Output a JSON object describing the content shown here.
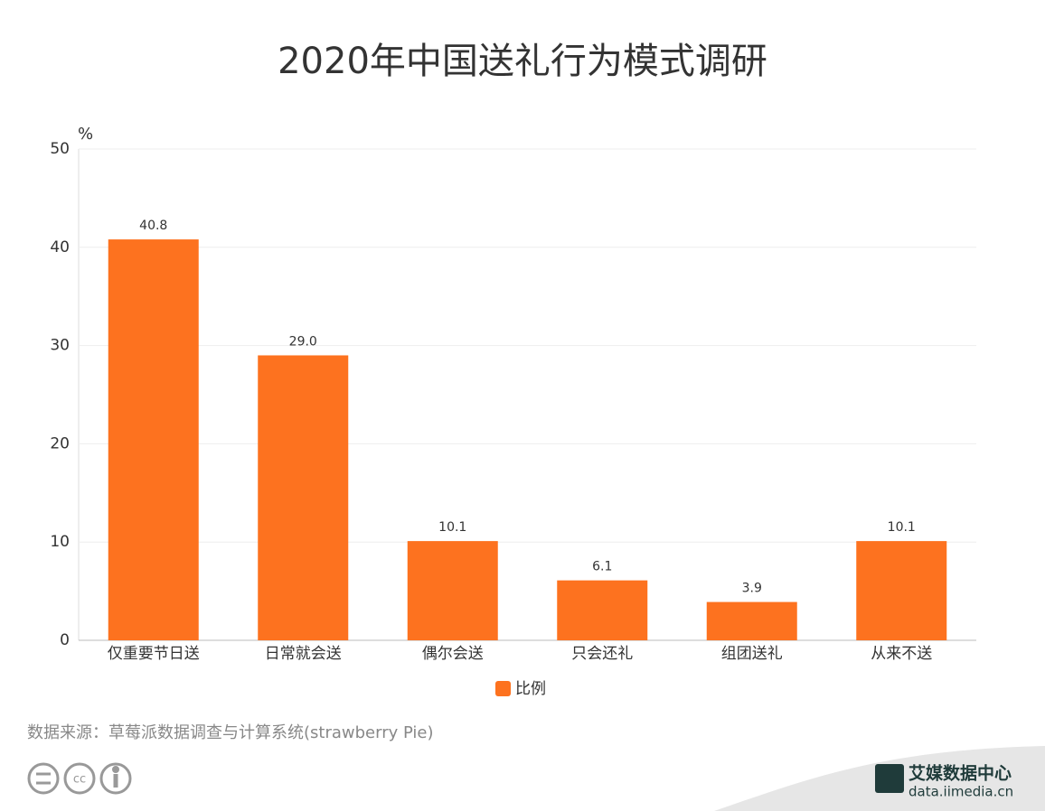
{
  "chart_data": {
    "type": "bar",
    "title": "2020年中国送礼行为模式调研",
    "y_unit": "%",
    "categories": [
      "仅重要节日送",
      "日常就会送",
      "偶尔会送",
      "只会还礼",
      "组团送礼",
      "从来不送"
    ],
    "series": [
      {
        "name": "比例",
        "color": "#fd721f",
        "values": [
          40.8,
          29.0,
          10.1,
          6.1,
          3.9,
          10.1
        ],
        "value_labels": [
          "40.8",
          "29.0",
          "10.1",
          "6.1",
          "3.9",
          "10.1"
        ]
      }
    ],
    "ylim": [
      0,
      50
    ],
    "yticks": [
      0,
      10,
      20,
      30,
      40,
      50
    ],
    "grid": true,
    "source": "数据来源：草莓派数据调查与计算系统(strawberry Pie)",
    "logo_name": "艾媒数据中心",
    "logo_url": "data.iimedia.cn"
  }
}
